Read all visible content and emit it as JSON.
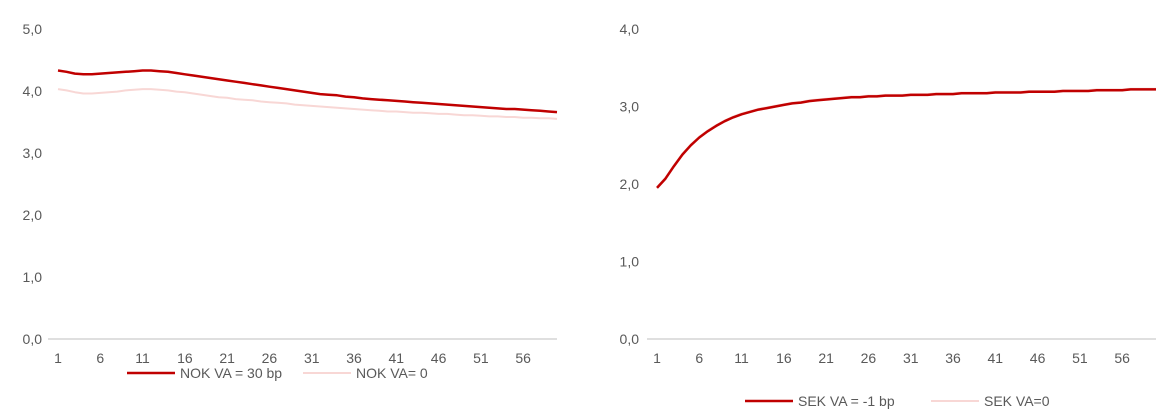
{
  "colors": {
    "series_primary": "#c00000",
    "series_secondary": "#f8d7d5",
    "axis": "#bfbfbf",
    "text": "#595959"
  },
  "chart_data": [
    {
      "type": "line",
      "title": "",
      "xlabel": "",
      "ylabel": "",
      "ylim": [
        0,
        5
      ],
      "yticks": [
        "0,0",
        "1,0",
        "2,0",
        "3,0",
        "4,0",
        "5,0"
      ],
      "xlim": [
        1,
        60
      ],
      "xticks": [
        "1",
        "6",
        "11",
        "16",
        "21",
        "26",
        "31",
        "36",
        "41",
        "46",
        "51",
        "56"
      ],
      "grid": false,
      "legend": "bottom",
      "x": [
        1,
        2,
        3,
        4,
        5,
        6,
        7,
        8,
        9,
        10,
        11,
        12,
        13,
        14,
        15,
        16,
        17,
        18,
        19,
        20,
        21,
        22,
        23,
        24,
        25,
        26,
        27,
        28,
        29,
        30,
        31,
        32,
        33,
        34,
        35,
        36,
        37,
        38,
        39,
        40,
        41,
        42,
        43,
        44,
        45,
        46,
        47,
        48,
        49,
        50,
        51,
        52,
        53,
        54,
        55,
        56,
        57,
        58,
        59,
        60
      ],
      "series": [
        {
          "name": "NOK VA = 30 bp",
          "color": "#c00000",
          "values": [
            4.33,
            4.31,
            4.28,
            4.27,
            4.27,
            4.28,
            4.29,
            4.3,
            4.31,
            4.32,
            4.33,
            4.33,
            4.32,
            4.31,
            4.29,
            4.27,
            4.25,
            4.23,
            4.21,
            4.19,
            4.17,
            4.15,
            4.13,
            4.11,
            4.09,
            4.07,
            4.05,
            4.03,
            4.01,
            3.99,
            3.97,
            3.95,
            3.94,
            3.93,
            3.91,
            3.9,
            3.88,
            3.87,
            3.86,
            3.85,
            3.84,
            3.83,
            3.82,
            3.81,
            3.8,
            3.79,
            3.78,
            3.77,
            3.76,
            3.75,
            3.74,
            3.73,
            3.72,
            3.71,
            3.71,
            3.7,
            3.69,
            3.68,
            3.67,
            3.66
          ]
        },
        {
          "name": "NOK VA= 0",
          "color": "#f8d7d5",
          "values": [
            4.03,
            4.01,
            3.98,
            3.96,
            3.96,
            3.97,
            3.98,
            3.99,
            4.01,
            4.02,
            4.03,
            4.03,
            4.02,
            4.01,
            3.99,
            3.98,
            3.96,
            3.94,
            3.92,
            3.9,
            3.89,
            3.87,
            3.86,
            3.85,
            3.83,
            3.82,
            3.81,
            3.8,
            3.78,
            3.77,
            3.76,
            3.75,
            3.74,
            3.73,
            3.72,
            3.71,
            3.7,
            3.69,
            3.68,
            3.67,
            3.67,
            3.66,
            3.65,
            3.65,
            3.64,
            3.63,
            3.63,
            3.62,
            3.61,
            3.61,
            3.6,
            3.59,
            3.59,
            3.58,
            3.58,
            3.57,
            3.57,
            3.56,
            3.56,
            3.55
          ]
        }
      ]
    },
    {
      "type": "line",
      "title": "",
      "xlabel": "",
      "ylabel": "",
      "ylim": [
        0,
        4
      ],
      "yticks": [
        "0,0",
        "1,0",
        "2,0",
        "3,0",
        "4,0"
      ],
      "xlim": [
        1,
        60
      ],
      "xticks": [
        "1",
        "6",
        "11",
        "16",
        "21",
        "26",
        "31",
        "36",
        "41",
        "46",
        "51",
        "56"
      ],
      "grid": false,
      "legend": "bottom",
      "x": [
        1,
        2,
        3,
        4,
        5,
        6,
        7,
        8,
        9,
        10,
        11,
        12,
        13,
        14,
        15,
        16,
        17,
        18,
        19,
        20,
        21,
        22,
        23,
        24,
        25,
        26,
        27,
        28,
        29,
        30,
        31,
        32,
        33,
        34,
        35,
        36,
        37,
        38,
        39,
        40,
        41,
        42,
        43,
        44,
        45,
        46,
        47,
        48,
        49,
        50,
        51,
        52,
        53,
        54,
        55,
        56,
        57,
        58,
        59,
        60
      ],
      "series": [
        {
          "name": "SEK VA = -1 bp",
          "color": "#c00000",
          "values": [
            1.95,
            2.07,
            2.23,
            2.38,
            2.5,
            2.6,
            2.68,
            2.75,
            2.81,
            2.86,
            2.9,
            2.93,
            2.96,
            2.98,
            3.0,
            3.02,
            3.04,
            3.05,
            3.07,
            3.08,
            3.09,
            3.1,
            3.11,
            3.12,
            3.12,
            3.13,
            3.13,
            3.14,
            3.14,
            3.14,
            3.15,
            3.15,
            3.15,
            3.16,
            3.16,
            3.16,
            3.17,
            3.17,
            3.17,
            3.17,
            3.18,
            3.18,
            3.18,
            3.18,
            3.19,
            3.19,
            3.19,
            3.19,
            3.2,
            3.2,
            3.2,
            3.2,
            3.21,
            3.21,
            3.21,
            3.21,
            3.22,
            3.22,
            3.22,
            3.22
          ]
        },
        {
          "name": "SEK VA=0",
          "color": "#f8d7d5",
          "values": [
            1.96,
            2.08,
            2.24,
            2.39,
            2.51,
            2.61,
            2.69,
            2.76,
            2.82,
            2.87,
            2.91,
            2.94,
            2.97,
            2.99,
            3.01,
            3.03,
            3.05,
            3.06,
            3.08,
            3.09,
            3.1,
            3.11,
            3.12,
            3.13,
            3.13,
            3.14,
            3.14,
            3.15,
            3.15,
            3.15,
            3.16,
            3.16,
            3.16,
            3.17,
            3.17,
            3.17,
            3.18,
            3.18,
            3.18,
            3.18,
            3.19,
            3.19,
            3.19,
            3.19,
            3.2,
            3.2,
            3.2,
            3.2,
            3.21,
            3.21,
            3.21,
            3.21,
            3.22,
            3.22,
            3.22,
            3.22,
            3.23,
            3.23,
            3.23,
            3.23
          ]
        }
      ]
    }
  ]
}
